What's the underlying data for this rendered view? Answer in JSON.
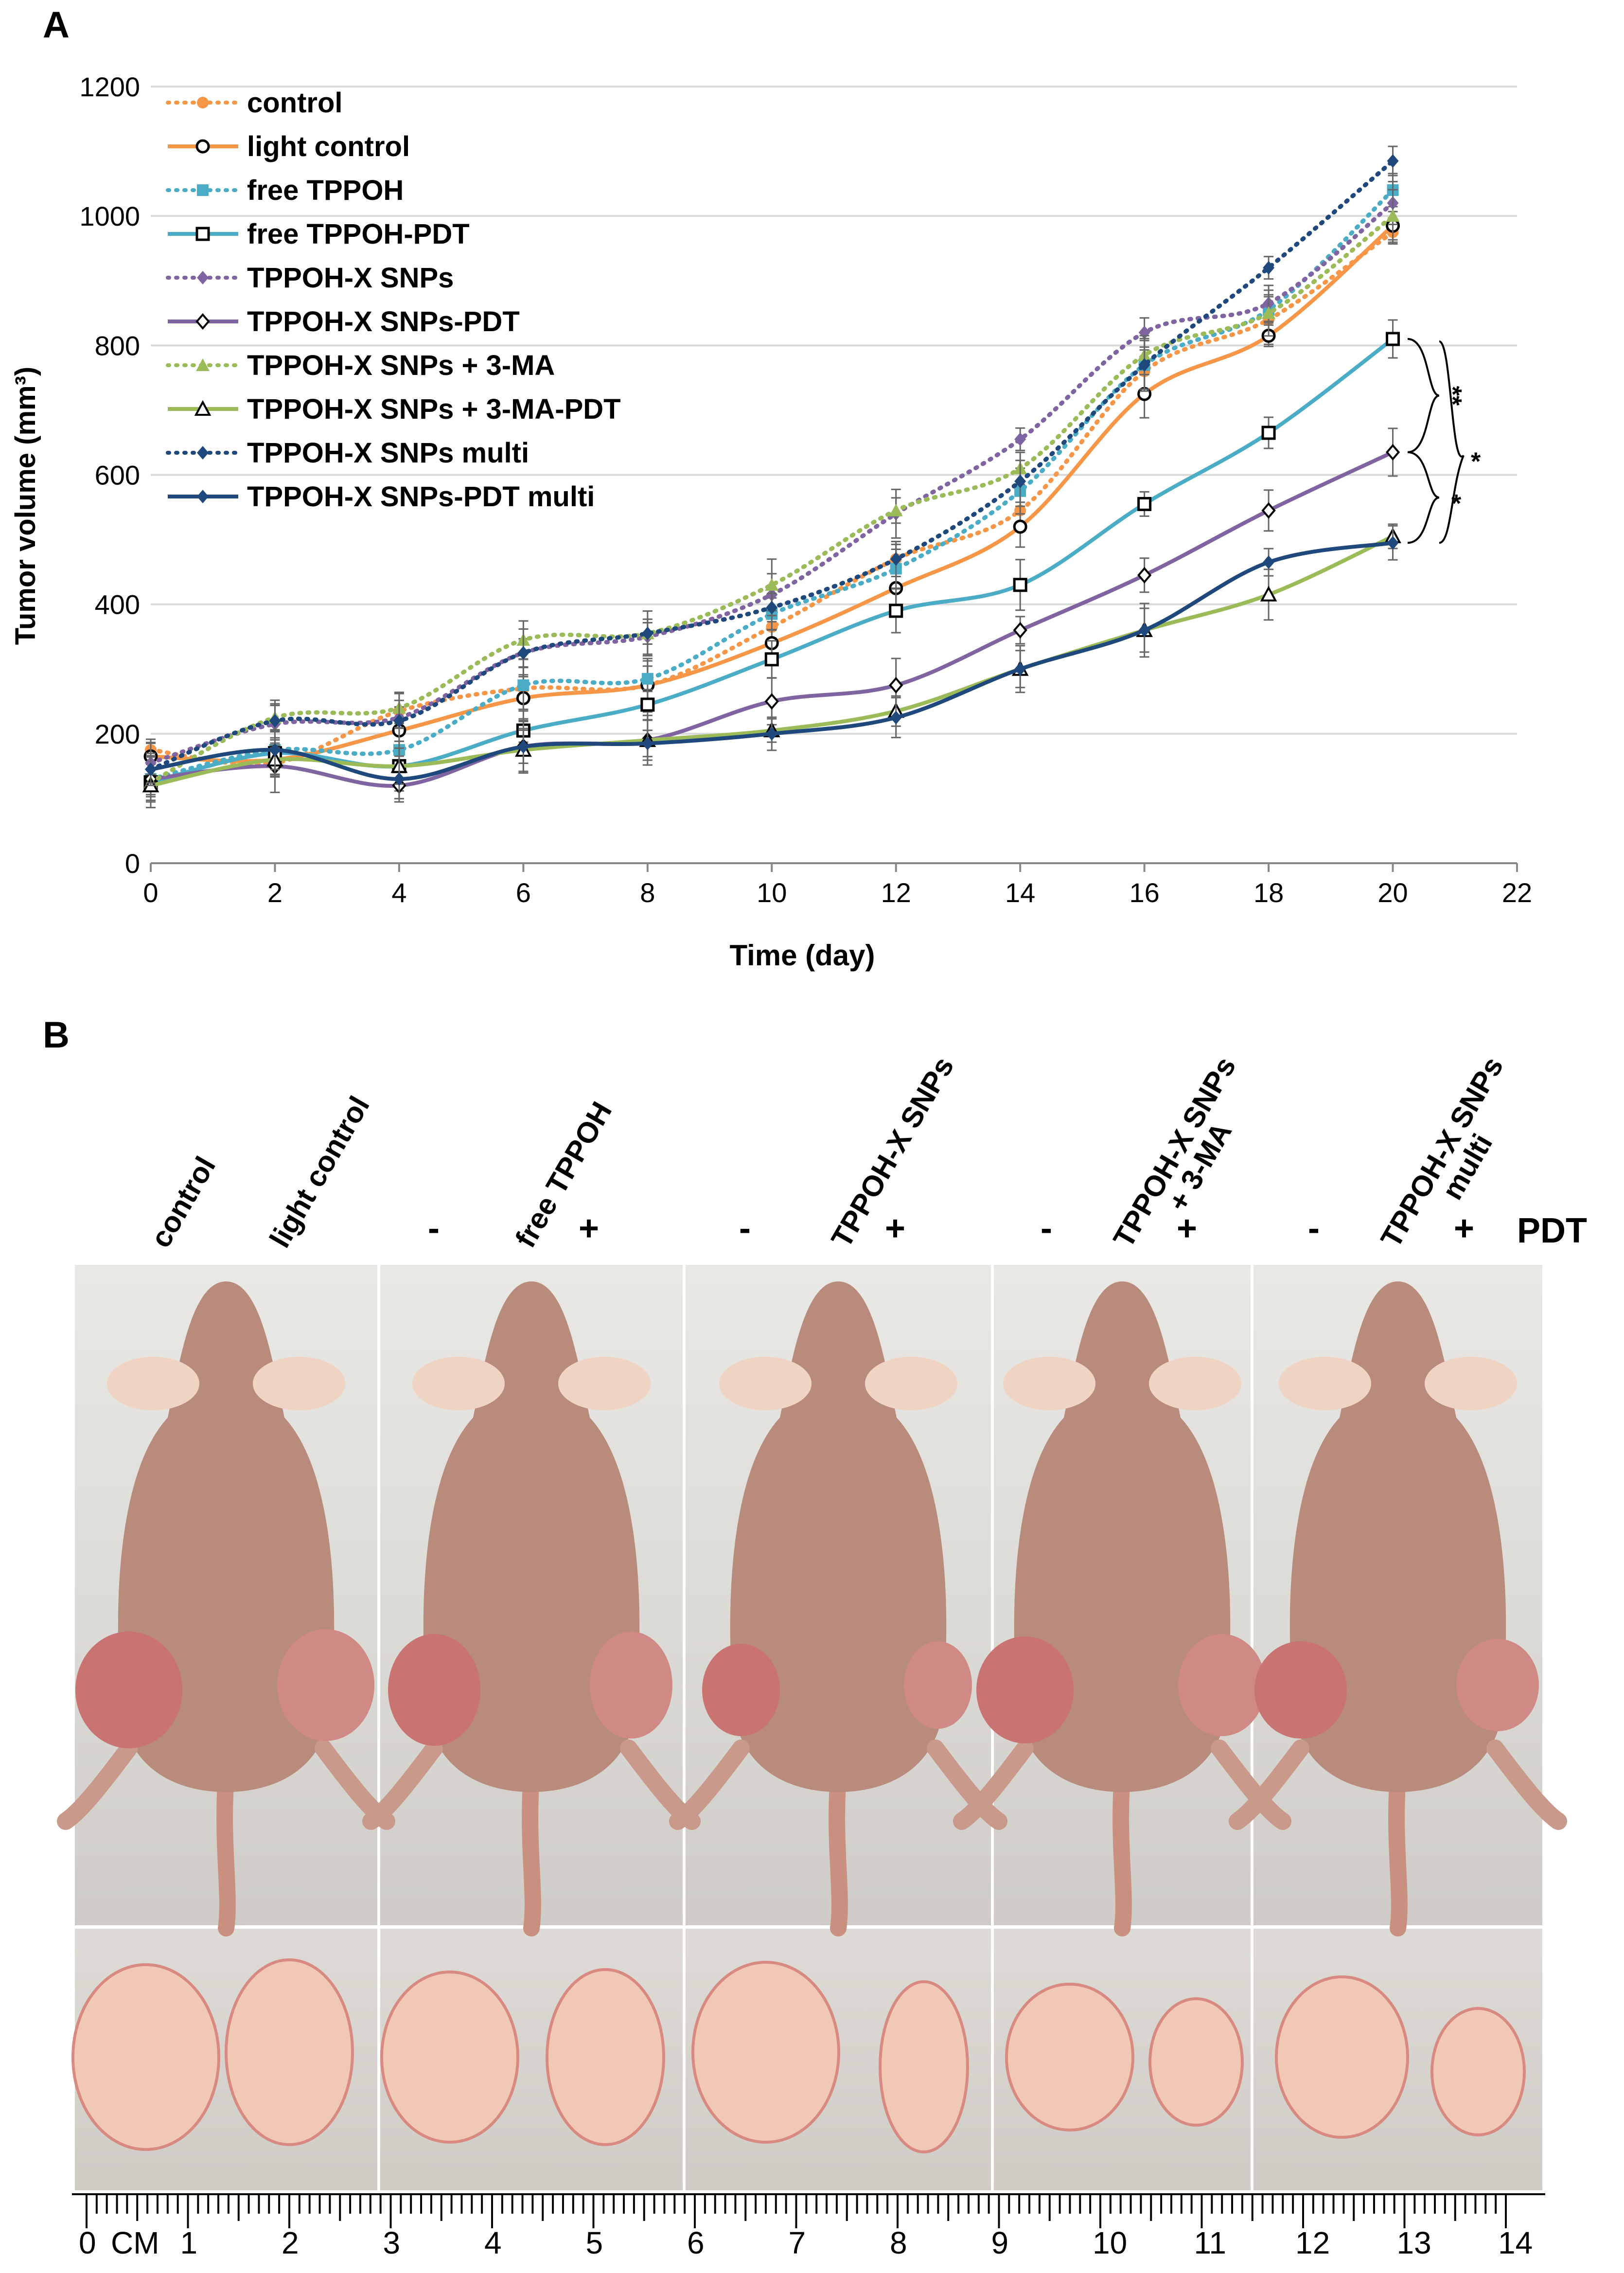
{
  "panel_a_label": "A",
  "panel_b_label": "B",
  "colors": {
    "orange": "#F79646",
    "cyan": "#4BACC6",
    "purple": "#8064A2",
    "green": "#9BBB59",
    "navy": "#1F497D",
    "grid": "#d9d9d9",
    "axis": "#888888"
  },
  "chart_data": {
    "type": "line",
    "xlabel": "Time (day)",
    "ylabel": "Tumor volume (mm³)",
    "xlim": [
      0,
      22
    ],
    "ylim": [
      0,
      1200
    ],
    "xticks": [
      "0",
      "2",
      "4",
      "6",
      "8",
      "10",
      "12",
      "14",
      "16",
      "18",
      "20",
      "22"
    ],
    "yticks": [
      "0",
      "200",
      "400",
      "600",
      "800",
      "1000",
      "1200"
    ],
    "x": [
      0,
      2,
      4,
      6,
      8,
      10,
      12,
      14,
      16,
      18,
      20
    ],
    "grid": true,
    "legend_position": "top-left",
    "series": [
      {
        "name": "control",
        "color": "orange",
        "dash": "dotted",
        "marker": "circle-filled",
        "values": [
          175,
          155,
          235,
          270,
          275,
          365,
          470,
          545,
          760,
          840,
          975
        ]
      },
      {
        "name": "light control",
        "color": "orange",
        "dash": "solid",
        "marker": "circle-open",
        "values": [
          165,
          160,
          205,
          255,
          275,
          340,
          425,
          520,
          725,
          815,
          985
        ]
      },
      {
        "name": "free TPPOH",
        "color": "cyan",
        "dash": "dotted",
        "marker": "square-filled",
        "values": [
          130,
          175,
          175,
          275,
          285,
          385,
          455,
          575,
          770,
          855,
          1040
        ]
      },
      {
        "name": "free TPPOH-PDT",
        "color": "cyan",
        "dash": "solid",
        "marker": "square-open",
        "values": [
          125,
          170,
          150,
          205,
          245,
          315,
          390,
          430,
          555,
          665,
          810
        ]
      },
      {
        "name": "TPPOH-X SNPs",
        "color": "purple",
        "dash": "dotted",
        "marker": "diamond-filled",
        "values": [
          155,
          215,
          225,
          325,
          350,
          415,
          540,
          655,
          820,
          865,
          1020
        ]
      },
      {
        "name": "TPPOH-X SNPs-PDT",
        "color": "purple",
        "dash": "solid",
        "marker": "diamond-open",
        "values": [
          130,
          150,
          120,
          180,
          190,
          250,
          275,
          360,
          445,
          545,
          635
        ]
      },
      {
        "name": "TPPOH-X SNPs + 3-MA",
        "color": "green",
        "dash": "dotted",
        "marker": "triangle-filled",
        "values": [
          125,
          225,
          240,
          345,
          355,
          430,
          545,
          610,
          785,
          850,
          1000
        ]
      },
      {
        "name": "TPPOH-X SNPs + 3-MA-PDT",
        "color": "green",
        "dash": "solid",
        "marker": "triangle-open",
        "values": [
          120,
          160,
          150,
          175,
          190,
          205,
          235,
          300,
          360,
          415,
          505
        ]
      },
      {
        "name": "TPPOH-X SNPs multi",
        "color": "navy",
        "dash": "dotted",
        "marker": "diamond-filled",
        "values": [
          145,
          220,
          220,
          325,
          355,
          395,
          470,
          590,
          770,
          920,
          1085
        ]
      },
      {
        "name": "TPPOH-X SNPs-PDT multi",
        "color": "navy",
        "dash": "solid",
        "marker": "diamond-filled",
        "values": [
          145,
          175,
          130,
          180,
          185,
          200,
          225,
          300,
          360,
          465,
          495
        ]
      }
    ],
    "annotations": [
      {
        "text": "**",
        "from_value": 810,
        "to_value": 635
      },
      {
        "text": "*",
        "from_value": 635,
        "to_value": 495
      },
      {
        "text": "*",
        "from_value": 810,
        "to_value": 495
      }
    ]
  },
  "panel_b": {
    "column_labels": [
      "control",
      "light control",
      "free TPPOH",
      "TPPOH-X SNPs",
      "TPPOH-X SNPs\n+ 3-MA",
      "TPPOH-X SNPs\nmulti"
    ],
    "minus": "-",
    "plus": "+",
    "pdt_label": "PDT",
    "ruler_unit": "CM",
    "ruler_numbers": [
      "0",
      "1",
      "2",
      "3",
      "4",
      "5",
      "6",
      "7",
      "8",
      "9",
      "10",
      "11",
      "12",
      "13",
      "14"
    ]
  }
}
